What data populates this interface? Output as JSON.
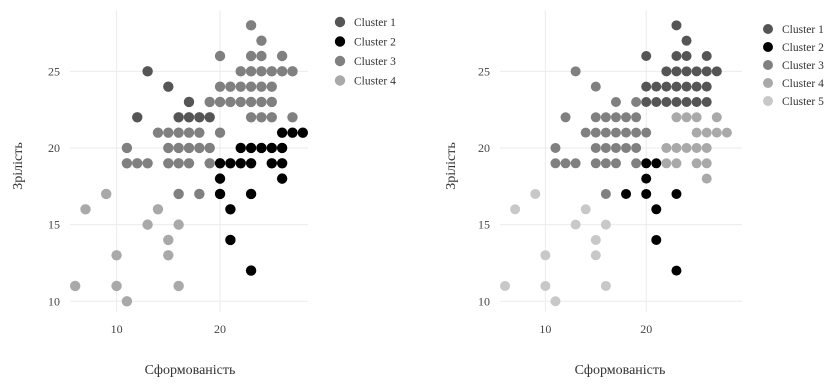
{
  "colors": {
    "background": "#ffffff",
    "grid": "#ebebeb",
    "axis_text": "#444444",
    "cluster_dark_gray": "#555555",
    "cluster_black": "#000000",
    "cluster_mid_gray": "#808080",
    "cluster_light_gray": "#a9a9a9",
    "cluster_lightest_gray": "#c8c8c8"
  },
  "chart_data": [
    {
      "type": "scatter",
      "title": "",
      "xlabel": "Сформованість",
      "ylabel": "Зрілість",
      "xlim": [
        5.5,
        28.5
      ],
      "ylim": [
        9.3,
        29.0
      ],
      "x_ticks": [
        10,
        20
      ],
      "y_ticks": [
        10,
        15,
        20,
        25
      ],
      "grid": true,
      "legend_position": "right",
      "series": [
        {
          "name": "Cluster 1",
          "color": "#555555",
          "points": [
            [
              13,
              25
            ],
            [
              12,
              22
            ],
            [
              15,
              24
            ],
            [
              16,
              22
            ],
            [
              17,
              23
            ],
            [
              17,
              22
            ],
            [
              18,
              22
            ],
            [
              19,
              22
            ]
          ]
        },
        {
          "name": "Cluster 2",
          "color": "#000000",
          "points": [
            [
              20,
              17
            ],
            [
              20,
              18
            ],
            [
              21,
              16
            ],
            [
              21,
              14
            ],
            [
              23,
              12
            ],
            [
              23,
              17
            ],
            [
              20,
              19
            ],
            [
              21,
              19
            ],
            [
              22,
              19
            ],
            [
              22,
              20
            ],
            [
              23,
              19
            ],
            [
              23,
              20
            ],
            [
              24,
              20
            ],
            [
              25,
              20
            ],
            [
              25,
              19
            ],
            [
              26,
              20
            ],
            [
              26,
              21
            ],
            [
              26,
              19
            ],
            [
              26,
              18
            ],
            [
              27,
              21
            ],
            [
              28,
              21
            ]
          ]
        },
        {
          "name": "Cluster 3",
          "color": "#808080",
          "points": [
            [
              11,
              20
            ],
            [
              11,
              19
            ],
            [
              12,
              19
            ],
            [
              13,
              19
            ],
            [
              14,
              21
            ],
            [
              15,
              21
            ],
            [
              16,
              21
            ],
            [
              17,
              21
            ],
            [
              15,
              20
            ],
            [
              16,
              20
            ],
            [
              17,
              20
            ],
            [
              18,
              20
            ],
            [
              19,
              20
            ],
            [
              15,
              19
            ],
            [
              16,
              19
            ],
            [
              17,
              19
            ],
            [
              19,
              19
            ],
            [
              16,
              17
            ],
            [
              18,
              17
            ],
            [
              18,
              21
            ],
            [
              20,
              21
            ],
            [
              19,
              23
            ],
            [
              20,
              23
            ],
            [
              21,
              23
            ],
            [
              22,
              23
            ],
            [
              23,
              23
            ],
            [
              24,
              23
            ],
            [
              25,
              23
            ],
            [
              20,
              24
            ],
            [
              21,
              24
            ],
            [
              22,
              24
            ],
            [
              23,
              24
            ],
            [
              24,
              24
            ],
            [
              25,
              24
            ],
            [
              22,
              25
            ],
            [
              23,
              25
            ],
            [
              24,
              25
            ],
            [
              25,
              25
            ],
            [
              26,
              25
            ],
            [
              23,
              26
            ],
            [
              24,
              26
            ],
            [
              26,
              26
            ],
            [
              20,
              26
            ],
            [
              24,
              27
            ],
            [
              23,
              28
            ],
            [
              27,
              25
            ],
            [
              23,
              22
            ],
            [
              24,
              22
            ],
            [
              25,
              22
            ],
            [
              27,
              22
            ]
          ]
        },
        {
          "name": "Cluster 4",
          "color": "#a9a9a9",
          "points": [
            [
              6,
              11
            ],
            [
              7,
              16
            ],
            [
              9,
              17
            ],
            [
              10,
              13
            ],
            [
              10,
              11
            ],
            [
              11,
              10
            ],
            [
              13,
              15
            ],
            [
              14,
              16
            ],
            [
              15,
              14
            ],
            [
              15,
              13
            ],
            [
              16,
              15
            ],
            [
              16,
              11
            ]
          ]
        }
      ]
    },
    {
      "type": "scatter",
      "title": "",
      "xlabel": "Сформованість",
      "ylabel": "Зрілість",
      "xlim": [
        5.5,
        29.5
      ],
      "ylim": [
        9.3,
        29.0
      ],
      "x_ticks": [
        10,
        20
      ],
      "y_ticks": [
        10,
        15,
        20,
        25
      ],
      "grid": true,
      "legend_position": "right",
      "series": [
        {
          "name": "Cluster 1",
          "color": "#555555",
          "points": [
            [
              20,
              26
            ],
            [
              20,
              24
            ],
            [
              21,
              24
            ],
            [
              22,
              24
            ],
            [
              23,
              24
            ],
            [
              24,
              24
            ],
            [
              25,
              24
            ],
            [
              26,
              24
            ],
            [
              20,
              23
            ],
            [
              21,
              23
            ],
            [
              22,
              23
            ],
            [
              23,
              23
            ],
            [
              24,
              23
            ],
            [
              25,
              23
            ],
            [
              26,
              23
            ],
            [
              22,
              25
            ],
            [
              23,
              25
            ],
            [
              24,
              25
            ],
            [
              25,
              25
            ],
            [
              26,
              25
            ],
            [
              27,
              25
            ],
            [
              23,
              26
            ],
            [
              24,
              26
            ],
            [
              26,
              26
            ],
            [
              24,
              27
            ],
            [
              23,
              28
            ]
          ]
        },
        {
          "name": "Cluster 2",
          "color": "#000000",
          "points": [
            [
              18,
              17
            ],
            [
              20,
              17
            ],
            [
              20,
              18
            ],
            [
              21,
              16
            ],
            [
              21,
              14
            ],
            [
              23,
              12
            ],
            [
              23,
              17
            ],
            [
              20,
              19
            ],
            [
              21,
              19
            ]
          ]
        },
        {
          "name": "Cluster 3",
          "color": "#808080",
          "points": [
            [
              13,
              25
            ],
            [
              12,
              22
            ],
            [
              15,
              24
            ],
            [
              11,
              20
            ],
            [
              11,
              19
            ],
            [
              12,
              19
            ],
            [
              13,
              19
            ],
            [
              14,
              21
            ],
            [
              15,
              21
            ],
            [
              16,
              21
            ],
            [
              17,
              21
            ],
            [
              15,
              20
            ],
            [
              16,
              20
            ],
            [
              17,
              20
            ],
            [
              18,
              20
            ],
            [
              15,
              19
            ],
            [
              16,
              19
            ],
            [
              17,
              19
            ],
            [
              16,
              17
            ],
            [
              15,
              22
            ],
            [
              16,
              22
            ],
            [
              17,
              22
            ],
            [
              18,
              22
            ],
            [
              19,
              22
            ],
            [
              17,
              23
            ],
            [
              19,
              23
            ],
            [
              18,
              21
            ],
            [
              19,
              21
            ],
            [
              20,
              21
            ],
            [
              19,
              20
            ],
            [
              19,
              19
            ]
          ]
        },
        {
          "name": "Cluster 4",
          "color": "#a9a9a9",
          "points": [
            [
              22,
              20
            ],
            [
              22,
              19
            ],
            [
              23,
              20
            ],
            [
              23,
              19
            ],
            [
              24,
              20
            ],
            [
              25,
              20
            ],
            [
              25,
              19
            ],
            [
              26,
              20
            ],
            [
              26,
              21
            ],
            [
              26,
              19
            ],
            [
              26,
              18
            ],
            [
              27,
              21
            ],
            [
              28,
              21
            ],
            [
              23,
              22
            ],
            [
              24,
              22
            ],
            [
              25,
              22
            ],
            [
              27,
              22
            ],
            [
              25,
              21
            ]
          ]
        },
        {
          "name": "Cluster 5",
          "color": "#c8c8c8",
          "points": [
            [
              6,
              11
            ],
            [
              7,
              16
            ],
            [
              9,
              17
            ],
            [
              10,
              13
            ],
            [
              10,
              11
            ],
            [
              11,
              10
            ],
            [
              13,
              15
            ],
            [
              14,
              16
            ],
            [
              15,
              14
            ],
            [
              15,
              13
            ],
            [
              16,
              15
            ],
            [
              16,
              11
            ]
          ]
        }
      ]
    }
  ]
}
